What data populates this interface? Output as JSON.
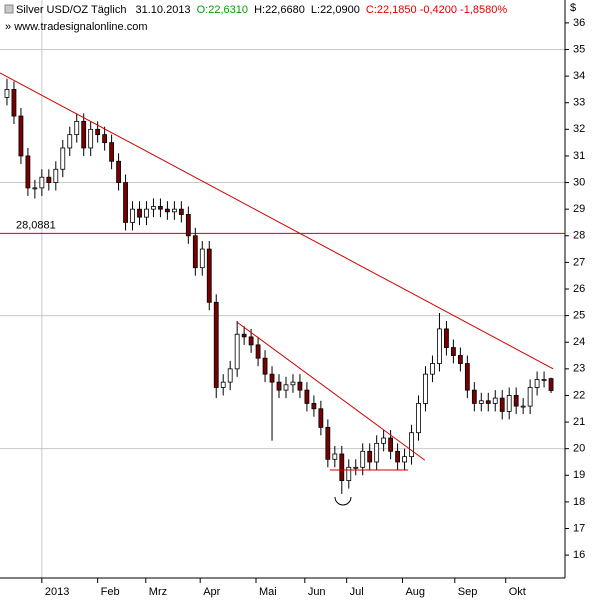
{
  "chart_data": {
    "type": "candlestick",
    "title": "Silver USD/OZ Täglich",
    "date": "31.10.2013",
    "quote": {
      "open": "O:22,6310",
      "high": "H:22,6680",
      "low": "L:22,0900",
      "close": "C:22,1850 -0,4200 -1,8580%"
    },
    "source": "www.tradesignalonline.com",
    "y_label": "$",
    "x": [
      1,
      2,
      3,
      4,
      5,
      6,
      7,
      8,
      9,
      10,
      11,
      12,
      13,
      14,
      15,
      16,
      17,
      18,
      19,
      20,
      21,
      22,
      23,
      24,
      25,
      26,
      27,
      28,
      29,
      30,
      31,
      32,
      33,
      34,
      35,
      36,
      37,
      38,
      39,
      40,
      41,
      42,
      43,
      44,
      45,
      46,
      47,
      48,
      49,
      50,
      51,
      52,
      53,
      54,
      55,
      56,
      57,
      58,
      59,
      60,
      61,
      62,
      63,
      64,
      65,
      66,
      67,
      68,
      69,
      70,
      71,
      72,
      73,
      74,
      75,
      76,
      77,
      78,
      79
    ],
    "open": [
      33.2,
      33.5,
      32.5,
      31,
      29.8,
      29.8,
      30.2,
      30,
      30.5,
      31.3,
      31.8,
      32.3,
      31.3,
      32,
      31.8,
      31.5,
      30.8,
      30,
      28.5,
      29,
      28.7,
      29,
      29.1,
      29,
      28.9,
      29,
      28.8,
      28,
      26.8,
      27.5,
      25.5,
      22.3,
      22.5,
      23,
      24.3,
      24.2,
      23.9,
      23.4,
      22.8,
      22.5,
      22.2,
      22.4,
      22.5,
      22.2,
      21.7,
      21.5,
      20.8,
      19.6,
      19.8,
      18.8,
      19.3,
      19.3,
      19.9,
      19.5,
      20.2,
      20.4,
      19.9,
      19.5,
      19.7,
      20.6,
      21.7,
      22.8,
      23.2,
      24.5,
      23.8,
      23.5,
      23.2,
      22.2,
      21.7,
      21.8,
      21.7,
      21.9,
      21.4,
      22,
      21.6,
      21.6,
      22.3,
      22.6,
      22.631
    ],
    "high": [
      33.9,
      33.8,
      32.8,
      31.3,
      30.1,
      30.5,
      30.5,
      30.8,
      31.6,
      32.1,
      32.6,
      32.6,
      32.3,
      32.3,
      32.1,
      31.8,
      31.1,
      30.3,
      29.3,
      29.3,
      29.3,
      29.4,
      29.4,
      29.3,
      29.3,
      29.3,
      29.1,
      28.3,
      27.8,
      27.8,
      25.8,
      22.8,
      23.3,
      24.8,
      24.6,
      24.5,
      24.2,
      23.7,
      23.1,
      22.8,
      22.7,
      22.8,
      22.8,
      22.5,
      22,
      21.8,
      21.1,
      20.1,
      20.1,
      19.6,
      19.6,
      20.2,
      20.2,
      20.5,
      20.7,
      20.7,
      20.2,
      20,
      20.9,
      22,
      23.1,
      23.5,
      25.1,
      24.8,
      24.1,
      23.8,
      23.5,
      22.5,
      22.1,
      22.1,
      22.2,
      22.2,
      22.3,
      22.3,
      21.9,
      22.6,
      22.9,
      22.9,
      22.668
    ],
    "low": [
      32.9,
      32.2,
      30.7,
      29.5,
      29.4,
      29.5,
      29.7,
      29.7,
      30.2,
      31,
      31.5,
      31,
      31,
      31.5,
      31.2,
      30.5,
      29.7,
      28.2,
      28.2,
      28.4,
      28.4,
      28.7,
      28.7,
      28.6,
      28.6,
      28.5,
      27.7,
      26.5,
      26.5,
      25.2,
      21.9,
      22,
      22.2,
      22.7,
      23.9,
      23.6,
      23.1,
      22.5,
      20.3,
      21.9,
      21.9,
      22.1,
      21.9,
      21.4,
      21.2,
      20.5,
      19.3,
      19.3,
      18.3,
      18.5,
      19,
      19,
      19.2,
      19.2,
      19.9,
      19.6,
      19.2,
      19.2,
      19.4,
      20.3,
      21.4,
      22.5,
      22.9,
      23.5,
      23.2,
      22.9,
      21.9,
      21.4,
      21.4,
      21.4,
      21.4,
      21.1,
      21.1,
      21.3,
      21.3,
      21.3,
      22,
      22.3,
      22.09
    ],
    "close": [
      33.5,
      32.5,
      31,
      29.8,
      29.8,
      30.2,
      30,
      30.5,
      31.3,
      31.8,
      32.3,
      31.3,
      32,
      31.8,
      31.5,
      30.8,
      30,
      28.5,
      29,
      28.7,
      29,
      29.1,
      29,
      28.9,
      29,
      28.8,
      28,
      26.8,
      27.5,
      25.5,
      22.3,
      22.5,
      23,
      24.3,
      24.2,
      23.9,
      23.4,
      22.8,
      22.5,
      22.2,
      22.4,
      22.5,
      22.2,
      21.7,
      21.5,
      20.8,
      19.6,
      19.8,
      18.8,
      19.3,
      19.3,
      19.9,
      19.5,
      20.2,
      20.4,
      19.9,
      19.5,
      19.7,
      20.6,
      21.7,
      22.8,
      23.2,
      24.5,
      23.8,
      23.5,
      23.2,
      22.2,
      21.7,
      21.8,
      21.7,
      21.9,
      21.4,
      22,
      21.6,
      21.6,
      22.3,
      22.6,
      22.6,
      22.185
    ],
    "up_color": "#ffffff",
    "down_color": "#7a0000",
    "wick_color": "#000000",
    "line_color": "#d00000",
    "xlim": [
      0,
      81
    ],
    "ylim": [
      15.14,
      36.86
    ],
    "xticks": [
      {
        "value": 6.0,
        "label": "2013"
      },
      {
        "value": 14.0,
        "label": "Feb"
      },
      {
        "value": 20.9,
        "label": "Mrz"
      },
      {
        "value": 28.7,
        "label": "Apr"
      },
      {
        "value": 36.7,
        "label": "Mai"
      },
      {
        "value": 43.7,
        "label": "Jun"
      },
      {
        "value": 49.7,
        "label": "Jul"
      },
      {
        "value": 57.7,
        "label": "Aug"
      },
      {
        "value": 65.2,
        "label": "Sep"
      },
      {
        "value": 72.5,
        "label": "Okt"
      }
    ],
    "yticks": [
      16,
      17,
      18,
      19,
      20,
      21,
      22,
      23,
      24,
      25,
      26,
      27,
      28,
      29,
      30,
      31,
      32,
      33,
      34,
      35,
      36
    ],
    "grid": {
      "y": [
        20,
        25,
        30,
        35
      ],
      "x": [
        6.0
      ]
    },
    "hline": {
      "value": 28.0881,
      "label": "28,0881"
    },
    "trendlines": [
      {
        "from": [
          0,
          34.12
        ],
        "to": [
          79.3,
          23.0
        ]
      },
      {
        "from": [
          34,
          24.75
        ],
        "to": [
          60.9,
          19.57
        ]
      },
      {
        "from": [
          47.3,
          19.2
        ],
        "to": [
          58.5,
          19.2
        ]
      }
    ]
  }
}
